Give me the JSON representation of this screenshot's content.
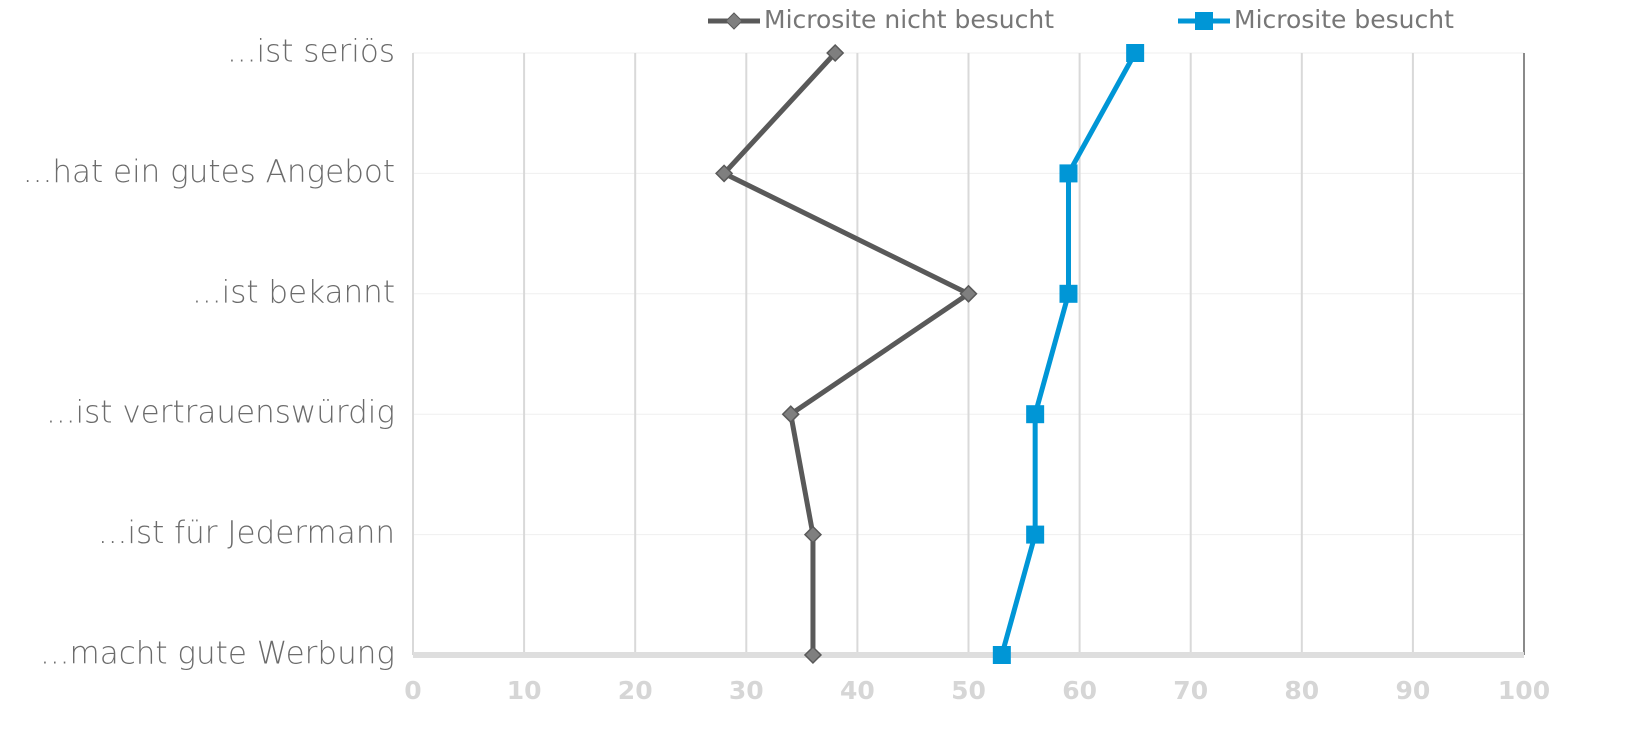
{
  "chart_data": {
    "type": "line",
    "orientation": "horizontal",
    "categories": [
      "...ist seriös",
      "...hat ein gutes Angebot",
      "...ist bekannt",
      "...ist vertrauenswürdig",
      "...ist für Jedermann",
      "...macht gute Werbung"
    ],
    "series": [
      {
        "name": "Microsite nicht besucht",
        "color": "#595959",
        "marker": "diamond",
        "values": [
          38,
          28,
          50,
          34,
          36,
          36
        ]
      },
      {
        "name": "Microsite besucht",
        "color": "#0096d6",
        "marker": "square",
        "values": [
          65,
          59,
          59,
          56,
          56,
          53
        ]
      }
    ],
    "xlim": [
      0,
      100
    ],
    "xticks": [
      0,
      10,
      20,
      30,
      40,
      50,
      60,
      70,
      80,
      90,
      100
    ],
    "grid": true,
    "legend": "top"
  }
}
